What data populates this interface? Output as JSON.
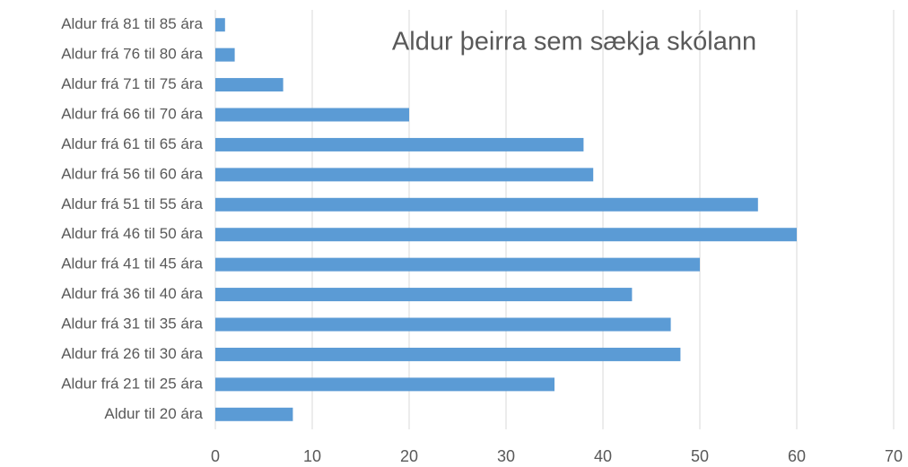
{
  "chart_data": {
    "type": "bar",
    "orientation": "horizontal",
    "title": "Aldur þeirra sem sækja skólann",
    "categories": [
      "Aldur frá 81 til 85 ára",
      "Aldur frá 76 til 80 ára",
      "Aldur frá 71 til 75 ára",
      "Aldur frá 66 til 70 ára",
      "Aldur frá 61 til 65 ára",
      "Aldur frá 56 til 60 ára",
      "Aldur frá 51 til 55 ára",
      "Aldur frá 46 til 50 ára",
      "Aldur frá 41 til 45 ára",
      "Aldur frá 36 til 40 ára",
      "Aldur frá 31 til 35 ára",
      "Aldur frá 26 til 30 ára",
      "Aldur frá 21 til 25 ára",
      "Aldur til 20 ára"
    ],
    "values": [
      1,
      2,
      7,
      20,
      38,
      39,
      56,
      60,
      50,
      43,
      47,
      48,
      35,
      8
    ],
    "color": "#5b9bd5",
    "xlim": [
      0,
      70
    ],
    "xticks": [
      0,
      10,
      20,
      30,
      40,
      50,
      60,
      70
    ],
    "grid": true
  }
}
